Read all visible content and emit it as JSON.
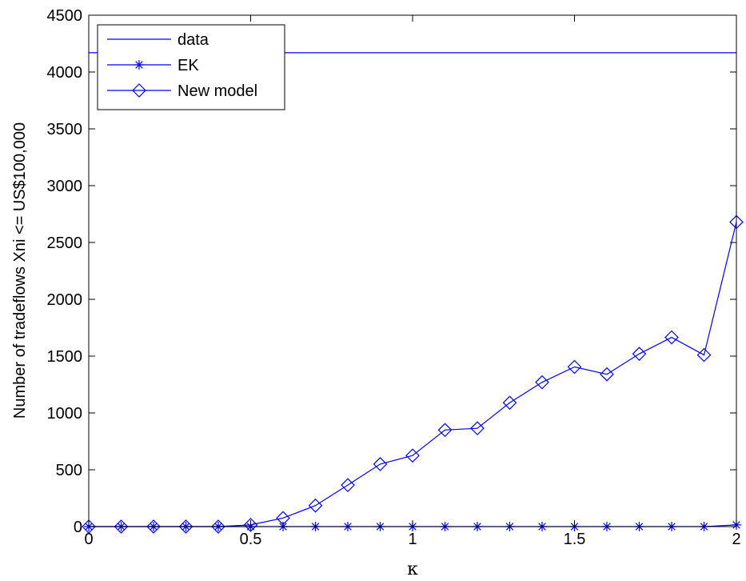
{
  "chart_data": {
    "type": "line",
    "title": "",
    "xlabel": "κ",
    "ylabel": "Number of tradeflows Xni <= US$100,000",
    "xlim": [
      0,
      2
    ],
    "ylim": [
      0,
      4500
    ],
    "xticks": [
      "0",
      "0.5",
      "1",
      "1.5",
      "2"
    ],
    "yticks": [
      "0",
      "500",
      "1000",
      "1500",
      "2000",
      "2500",
      "3000",
      "3500",
      "4000",
      "4500"
    ],
    "grid": false,
    "legend_position": "top-left",
    "colors": {
      "series": "#0000ff",
      "axes": "#000000",
      "background": "#ffffff"
    },
    "series": [
      {
        "name": "data",
        "marker": "none",
        "x": [
          0,
          2
        ],
        "values": [
          4170,
          4170
        ]
      },
      {
        "name": "EK",
        "marker": "asterisk",
        "x": [
          0,
          0.1,
          0.2,
          0.3,
          0.4,
          0.5,
          0.6,
          0.7,
          0.8,
          0.9,
          1.0,
          1.1,
          1.2,
          1.3,
          1.4,
          1.5,
          1.6,
          1.7,
          1.8,
          1.9,
          2.0
        ],
        "values": [
          0,
          0,
          0,
          0,
          0,
          0,
          0,
          0,
          0,
          0,
          0,
          0,
          0,
          0,
          0,
          0,
          0,
          0,
          0,
          0,
          15
        ]
      },
      {
        "name": "New model",
        "marker": "diamond",
        "x": [
          0,
          0.1,
          0.2,
          0.3,
          0.4,
          0.5,
          0.6,
          0.7,
          0.8,
          0.9,
          1.0,
          1.1,
          1.2,
          1.3,
          1.4,
          1.5,
          1.6,
          1.7,
          1.8,
          1.9,
          2.0
        ],
        "values": [
          0,
          0,
          0,
          0,
          0,
          15,
          75,
          185,
          365,
          550,
          625,
          850,
          865,
          1090,
          1270,
          1405,
          1340,
          1520,
          1665,
          1510,
          2680
        ]
      }
    ]
  }
}
